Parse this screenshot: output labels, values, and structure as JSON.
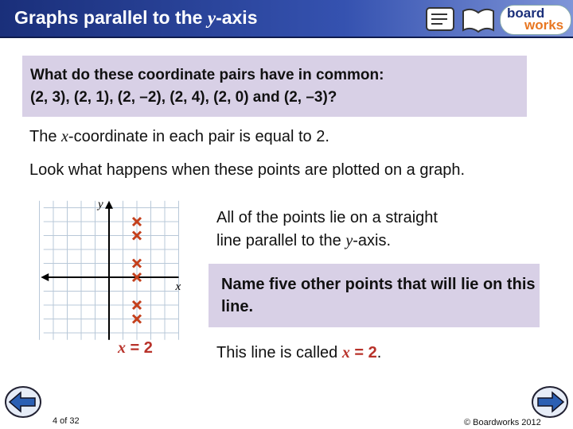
{
  "header": {
    "title": [
      "Graphs parallel to the ",
      "y",
      "-axis"
    ],
    "logo": [
      "board",
      "works"
    ]
  },
  "question": [
    "What do these coordinate pairs have in common:",
    "(2, 3), (2, 1), (2, –2), (2, 4), (2, 0) and (2, –3)?"
  ],
  "answer": [
    "The ",
    "x",
    "-coordinate in each pair is equal to 2."
  ],
  "prompt": "Look what happens when these points are plotted on a graph.",
  "graph": {
    "y_label": "y",
    "x_label": "x",
    "equation": [
      "x",
      " = 2"
    ],
    "points": {
      "x": [
        2,
        2,
        2,
        2,
        2,
        2
      ],
      "y": [
        4,
        3,
        1,
        0,
        -2,
        -3
      ]
    }
  },
  "note": [
    "All of the points lie on a straight",
    "line parallel to the ",
    "y",
    "-axis."
  ],
  "task": "Name five other points that will lie on this line.",
  "conclusion": [
    "This line is called ",
    "x",
    " = 2",
    "."
  ],
  "footer": {
    "page": "4 of 32",
    "copyright": "© Boardworks 2012"
  }
}
